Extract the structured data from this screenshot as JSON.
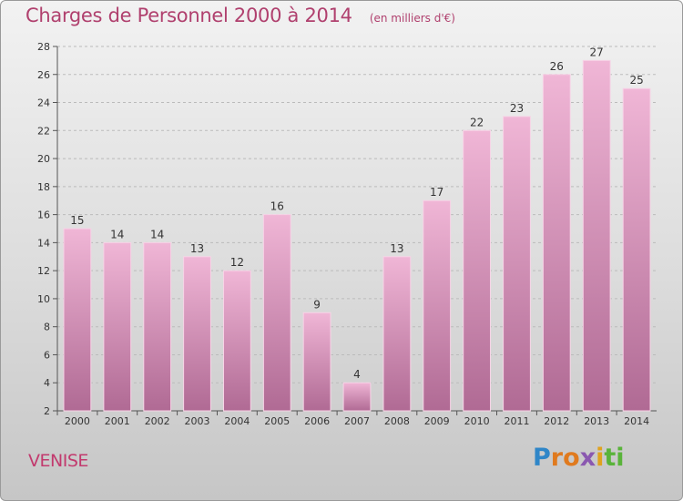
{
  "header": {
    "title": "Charges de Personnel 2000 à 2014",
    "unit": "(en milliers d'€)"
  },
  "footer": {
    "city": "VENISE",
    "logo_letters": [
      "P",
      "r",
      "o",
      "x",
      "i",
      "t",
      "i"
    ]
  },
  "colors": {
    "bar_light": "#f0b6d6",
    "bar_dark": "#b06a94",
    "title": "#b0406e",
    "grid": "#bbbbbb"
  },
  "chart_data": {
    "type": "bar",
    "title": "Charges de Personnel 2000 à 2014",
    "xlabel": "",
    "ylabel": "",
    "categories": [
      "2000",
      "2001",
      "2002",
      "2003",
      "2004",
      "2005",
      "2006",
      "2007",
      "2008",
      "2009",
      "2010",
      "2011",
      "2012",
      "2013",
      "2014"
    ],
    "values": [
      15,
      14,
      14,
      13,
      12,
      16,
      9,
      4,
      13,
      17,
      22,
      23,
      26,
      27,
      25
    ],
    "ylim": [
      2,
      28
    ],
    "yticks": [
      2,
      4,
      6,
      8,
      10,
      12,
      14,
      16,
      18,
      20,
      22,
      24,
      26,
      28
    ],
    "grid": true,
    "data_labels": true
  }
}
